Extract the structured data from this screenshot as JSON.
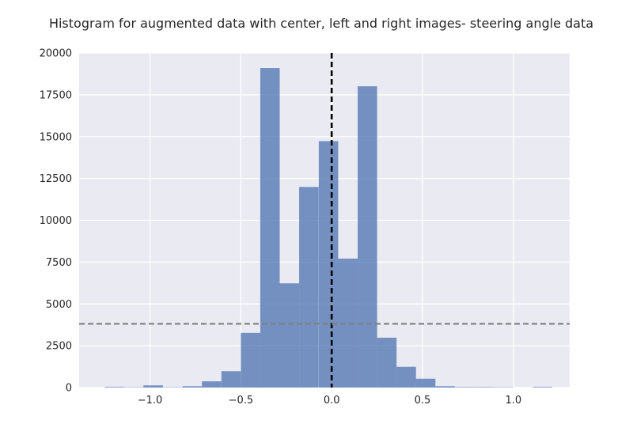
{
  "chart_data": {
    "type": "bar",
    "title": "Histogram for augmented data with center, left and right images- steering angle data",
    "xlabel": "",
    "ylabel": "",
    "xlim": [
      -1.39,
      1.31
    ],
    "ylim": [
      0,
      20000
    ],
    "grid": true,
    "bin_width": 0.107,
    "bins": [
      {
        "left": -1.25,
        "count": 40
      },
      {
        "left": -1.143,
        "count": 20
      },
      {
        "left": -1.036,
        "count": 130
      },
      {
        "left": -0.929,
        "count": 20
      },
      {
        "left": -0.821,
        "count": 80
      },
      {
        "left": -0.714,
        "count": 370
      },
      {
        "left": -0.607,
        "count": 980
      },
      {
        "left": -0.5,
        "count": 3270
      },
      {
        "left": -0.393,
        "count": 19100
      },
      {
        "left": -0.286,
        "count": 6230
      },
      {
        "left": -0.179,
        "count": 11990
      },
      {
        "left": -0.071,
        "count": 14730
      },
      {
        "left": 0.036,
        "count": 7710
      },
      {
        "left": 0.143,
        "count": 18010
      },
      {
        "left": 0.25,
        "count": 2980
      },
      {
        "left": 0.357,
        "count": 1240
      },
      {
        "left": 0.464,
        "count": 530
      },
      {
        "left": 0.571,
        "count": 80
      },
      {
        "left": 0.679,
        "count": 30
      },
      {
        "left": 0.786,
        "count": 30
      },
      {
        "left": 0.893,
        "count": 20
      },
      {
        "left": 1.0,
        "count": 0
      },
      {
        "left": 1.107,
        "count": 40
      }
    ],
    "reference_lines": [
      {
        "orientation": "vertical",
        "value": 0.0,
        "color": "#000000",
        "style": "dashed"
      },
      {
        "orientation": "horizontal",
        "value": 3810,
        "color": "#7f7f7f",
        "style": "dashed"
      }
    ],
    "x_ticks": [
      {
        "value": -1.0,
        "label": "−1.0"
      },
      {
        "value": -0.5,
        "label": "−0.5"
      },
      {
        "value": 0.0,
        "label": "0.0"
      },
      {
        "value": 0.5,
        "label": "0.5"
      },
      {
        "value": 1.0,
        "label": "1.0"
      }
    ],
    "y_ticks": [
      {
        "value": 0,
        "label": "0"
      },
      {
        "value": 2500,
        "label": "2500"
      },
      {
        "value": 5000,
        "label": "5000"
      },
      {
        "value": 7500,
        "label": "7500"
      },
      {
        "value": 10000,
        "label": "10000"
      },
      {
        "value": 12500,
        "label": "12500"
      },
      {
        "value": 15000,
        "label": "15000"
      },
      {
        "value": 17500,
        "label": "17500"
      },
      {
        "value": 20000,
        "label": "20000"
      }
    ],
    "colors": {
      "bar": "#4c72b0",
      "plot_background": "#eaeaf2",
      "grid": "#ffffff"
    }
  }
}
